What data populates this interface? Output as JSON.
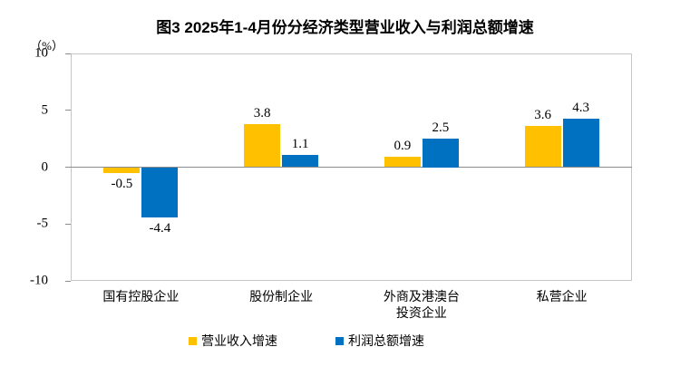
{
  "chart_data": {
    "type": "bar",
    "title": "图3 2025年1-4月份分经济类型营业收入与利润总额增速",
    "unit_label": "（%）",
    "categories": [
      "国有控股企业",
      "股份制企业",
      "外商及港澳台\n投资企业",
      "私营企业"
    ],
    "series": [
      {
        "name": "营业收入增速",
        "key": "revenue-growth",
        "color": "#FFC000",
        "values": [
          -0.5,
          3.8,
          0.9,
          3.6
        ]
      },
      {
        "name": "利润总额增速",
        "key": "profit-growth",
        "color": "#0070C0",
        "values": [
          -4.4,
          1.1,
          2.5,
          4.3
        ]
      }
    ],
    "ylim": [
      -10,
      10
    ],
    "yticks": [
      10,
      5,
      0,
      -5,
      -10
    ],
    "grid": false,
    "legend_position": "bottom",
    "value_label_decimals": 1
  },
  "colors": {
    "plot_border": "#c6c6c6",
    "axis_line": "#8c8c8c",
    "text": "#000000",
    "background": "#ffffff"
  }
}
